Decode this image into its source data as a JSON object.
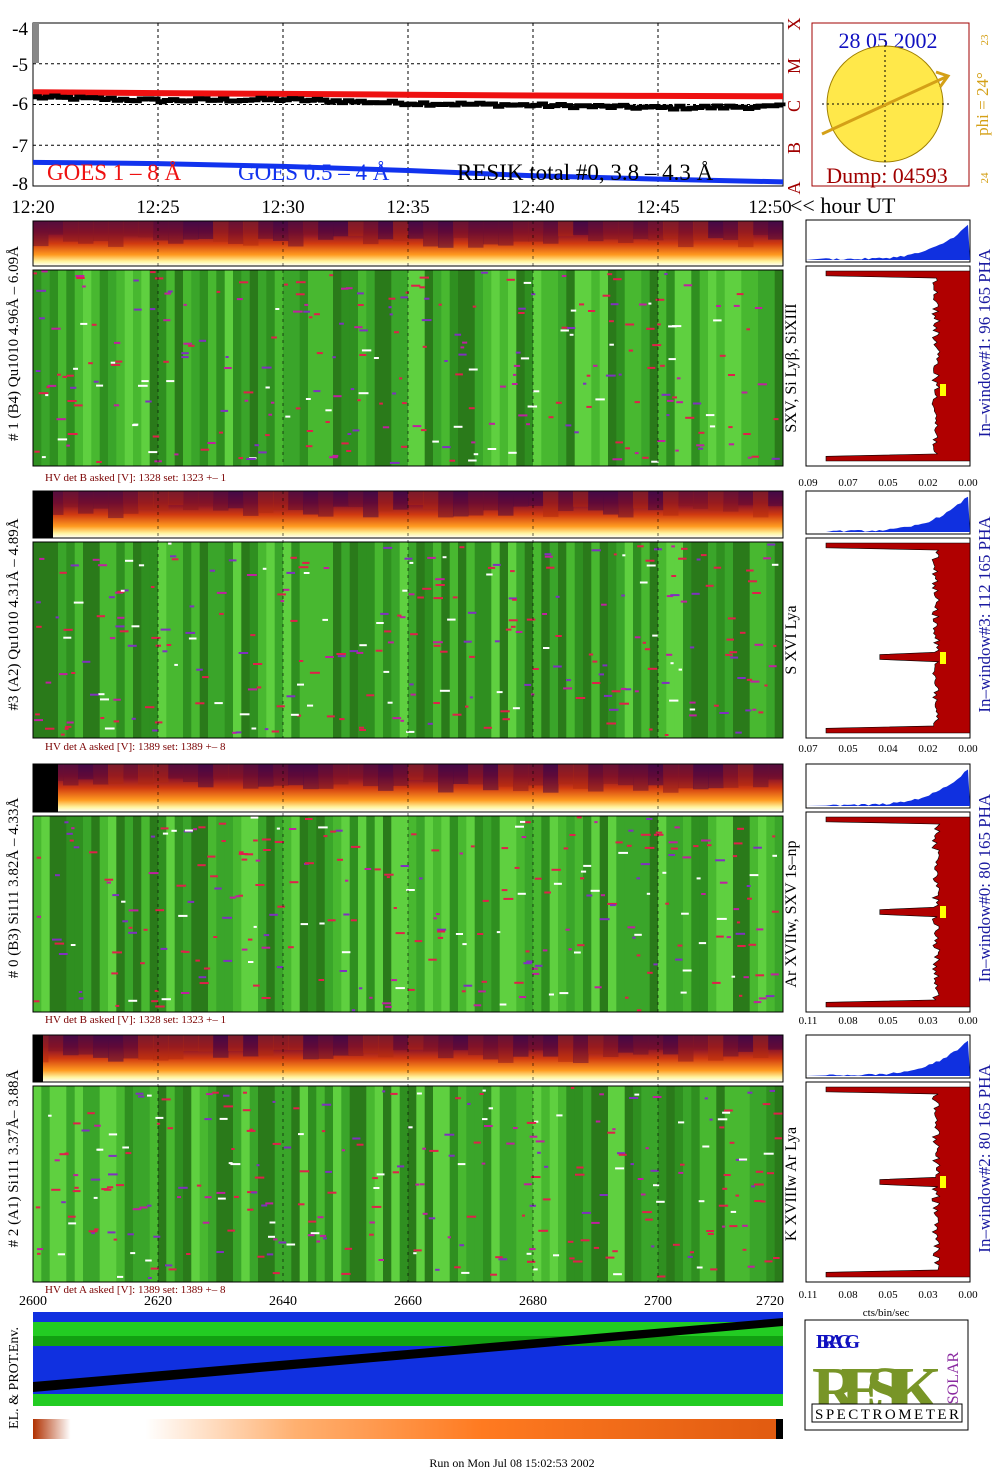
{
  "colors": {
    "goes_long": "#ee1111",
    "goes_short": "#1133ee",
    "resik": "#000000",
    "sun_fill": "#ffe84a",
    "sun_arrow": "#d4a017",
    "frame_red": "#a00000",
    "date_blue": "#1010c0",
    "phi_orange": "#d4a017",
    "pha_red": "#b00000",
    "pha_blue": "#1030e0",
    "green_dark": "#2a7a1a",
    "green_mid": "#3aa52a",
    "green_light": "#5fd040",
    "env_blue": "#1030e0",
    "env_green": "#22cc22"
  },
  "goes_panel": {
    "y_ticks": [
      "-4",
      "-5",
      "-6",
      "-7",
      "-8"
    ],
    "class_labels": [
      "X",
      "M",
      "C",
      "B",
      "A"
    ],
    "legend": {
      "goes_long": "GOES 1 – 8 Å",
      "goes_short": "GOES 0.5 – 4 Å",
      "resik": "RESIK total #0, 3.8 – 4.3 Å"
    },
    "x_ticks": [
      "12:20",
      "12:25",
      "12:30",
      "12:35",
      "12:40",
      "12:45",
      "12:50"
    ],
    "x_unit": "<< hour UT"
  },
  "sun_panel": {
    "date": "28 05 2002",
    "dump": "Dump: 04593",
    "phi_label": "phi = 24°",
    "side_top": "23",
    "side_bottom": "24"
  },
  "detectors": [
    {
      "left_label": "# 1 (B4) Qu1010 4.96Å – 6.09Å",
      "line_label": "SXV, Si Lyβ, SiXIII",
      "window_label": "In–window#1:   96 165  PHA",
      "hv": "HV det B asked [V]:   1328  set:   1323   +–     1",
      "pha_ticks": [
        "0.09",
        "0.07",
        "0.05",
        "0.02",
        "0.00"
      ]
    },
    {
      "left_label": "#3 (A2) Qu1010  4.31Å – 4.89Å",
      "line_label": "S XVI Lya",
      "window_label": "In–window#3:   112 165  PHA",
      "hv": "HV det A asked [V]:   1389  set:   1389   +–     8",
      "pha_ticks": [
        "0.07",
        "0.05",
        "0.04",
        "0.02",
        "0.00"
      ]
    },
    {
      "left_label": "# 0 (B3) Si111  3.82Å – 4.33Å",
      "line_label": "Ar XVIIw,  SXV 1s–np",
      "window_label": "In–window#0:    80 165  PHA",
      "hv": "HV det B asked [V]:   1328  set:   1323   +–     1",
      "pha_ticks": [
        "0.11",
        "0.08",
        "0.05",
        "0.03",
        "0.00"
      ]
    },
    {
      "left_label": "# 2 (A1) Si111  3.37Å–  3.88Å",
      "line_label": "K XVIIIw   Ar Lya",
      "window_label": "In–window#2:    80 165  PHA",
      "hv": "HV det A asked [V]:   1389  set:   1389   +–     8",
      "pha_ticks": [
        "0.11",
        "0.08",
        "0.05",
        "0.03",
        "0.00"
      ]
    }
  ],
  "bottom_axis": {
    "ticks": [
      "2600",
      "2620",
      "2640",
      "2660",
      "2680",
      "2700",
      "2720"
    ],
    "pha_unit": "cts/bin/sec"
  },
  "env": {
    "label": "EL. & PROT.Env."
  },
  "logo": {
    "letters": "RESIK",
    "small": "BRAGG",
    "side": "SOLAR",
    "bottom": "SPECTROMETER"
  },
  "footer": "Run on Mon Jul 08 15:02:53 2002",
  "chart_data": [
    {
      "type": "line",
      "x": [
        "12:20",
        "12:25",
        "12:30",
        "12:35",
        "12:40",
        "12:45",
        "12:50"
      ],
      "ylim": [
        -8,
        -4
      ],
      "series": [
        {
          "name": "GOES 1 – 8 Å",
          "values": [
            -5.7,
            -5.72,
            -5.74,
            -5.76,
            -5.78,
            -5.79,
            -5.8
          ]
        },
        {
          "name": "GOES 0.5 – 4 Å",
          "values": [
            -7.42,
            -7.45,
            -7.52,
            -7.62,
            -7.75,
            -7.83,
            -7.9
          ]
        },
        {
          "name": "RESIK total #0, 3.8 – 4.3 Å",
          "values": [
            -5.82,
            -5.9,
            -5.88,
            -5.97,
            -6.02,
            -6.08,
            -6.05
          ]
        }
      ]
    }
  ]
}
